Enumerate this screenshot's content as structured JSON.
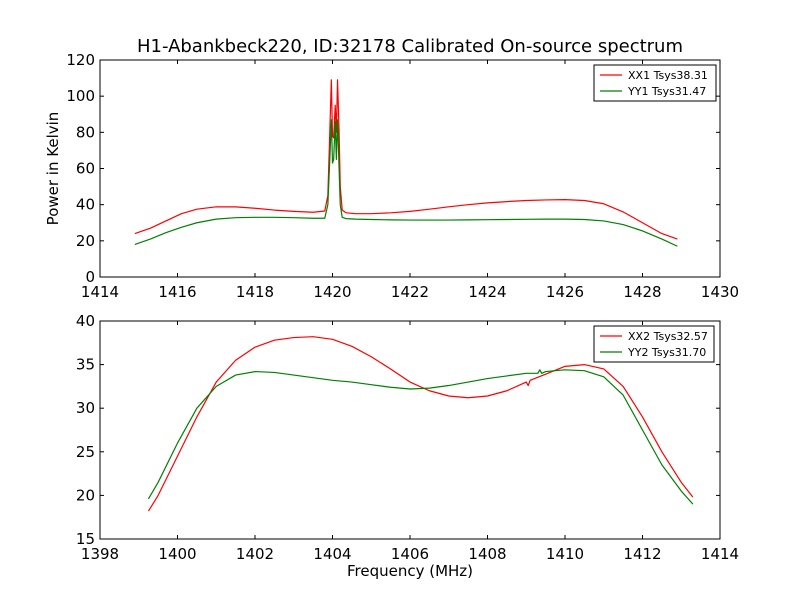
{
  "chart_data": [
    {
      "type": "line",
      "title": "H1-Abankbeck220, ID:32178 Calibrated On-source spectrum",
      "xlabel": "",
      "ylabel": "Power in Kelvin",
      "xlim": [
        1414,
        1430
      ],
      "ylim": [
        0,
        120
      ],
      "xticks": [
        1414,
        1416,
        1418,
        1420,
        1422,
        1424,
        1426,
        1428,
        1430
      ],
      "yticks": [
        0,
        20,
        40,
        60,
        80,
        100,
        120
      ],
      "grid": false,
      "legend_position": "top-right",
      "series": [
        {
          "name": "XX1 Tsys38.31",
          "color": "#ff0000",
          "x": [
            1414.9,
            1415.3,
            1415.7,
            1416.1,
            1416.5,
            1417.0,
            1417.5,
            1418.0,
            1418.5,
            1419.0,
            1419.5,
            1419.8,
            1419.88,
            1419.93,
            1419.97,
            1420.0,
            1420.03,
            1420.07,
            1420.1,
            1420.13,
            1420.17,
            1420.2,
            1420.25,
            1420.35,
            1420.6,
            1421.0,
            1421.5,
            1422.0,
            1422.5,
            1423.0,
            1423.5,
            1424.0,
            1424.5,
            1425.0,
            1425.5,
            1426.0,
            1426.5,
            1427.0,
            1427.5,
            1428.0,
            1428.5,
            1428.9
          ],
          "y": [
            24,
            27,
            31,
            35,
            37.5,
            38.8,
            38.8,
            38,
            37,
            36.3,
            35.8,
            36.5,
            45,
            80,
            109,
            78,
            77,
            95,
            80,
            109,
            80,
            50,
            37,
            35.5,
            35,
            35,
            35.5,
            36.3,
            37.5,
            38.8,
            40,
            41,
            41.7,
            42.3,
            42.6,
            42.8,
            42.3,
            40.5,
            36,
            30,
            24,
            21
          ]
        },
        {
          "name": "YY1 Tsys31.47",
          "color": "#008000",
          "x": [
            1414.9,
            1415.3,
            1415.7,
            1416.1,
            1416.5,
            1417.0,
            1417.5,
            1418.0,
            1418.5,
            1419.0,
            1419.5,
            1419.8,
            1419.88,
            1419.93,
            1419.97,
            1420.0,
            1420.03,
            1420.07,
            1420.1,
            1420.13,
            1420.17,
            1420.2,
            1420.25,
            1420.35,
            1420.6,
            1421.0,
            1421.5,
            1422.0,
            1422.5,
            1423.0,
            1423.5,
            1424.0,
            1424.5,
            1425.0,
            1425.5,
            1426.0,
            1426.5,
            1427.0,
            1427.5,
            1428.0,
            1428.5,
            1428.9
          ],
          "y": [
            18,
            21,
            24.5,
            27.5,
            30,
            32,
            32.8,
            33,
            33,
            32.8,
            32.5,
            32.5,
            40,
            65,
            87,
            63,
            65,
            86,
            65,
            87,
            60,
            40,
            33,
            32.3,
            32,
            31.8,
            31.6,
            31.5,
            31.5,
            31.5,
            31.6,
            31.7,
            31.8,
            31.9,
            32,
            32,
            31.8,
            31,
            29,
            25.5,
            21,
            17
          ]
        }
      ]
    },
    {
      "type": "line",
      "title": "",
      "xlabel": "Frequency (MHz)",
      "ylabel": "",
      "xlim": [
        1398,
        1414
      ],
      "ylim": [
        15,
        40
      ],
      "xticks": [
        1398,
        1400,
        1402,
        1404,
        1406,
        1408,
        1410,
        1412,
        1414
      ],
      "yticks": [
        15,
        20,
        25,
        30,
        35,
        40
      ],
      "grid": false,
      "legend_position": "top-right",
      "series": [
        {
          "name": "XX2 Tsys32.57",
          "color": "#ff0000",
          "x": [
            1399.25,
            1399.5,
            1400.0,
            1400.5,
            1401.0,
            1401.5,
            1402.0,
            1402.5,
            1403.0,
            1403.5,
            1404.0,
            1404.5,
            1405.0,
            1405.5,
            1406.0,
            1406.5,
            1407.0,
            1407.5,
            1408.0,
            1408.5,
            1409.0,
            1409.05,
            1409.1,
            1409.5,
            1410.0,
            1410.5,
            1411.0,
            1411.5,
            1412.0,
            1412.5,
            1413.0,
            1413.3
          ],
          "y": [
            18.2,
            20,
            24.5,
            29,
            33,
            35.5,
            37,
            37.8,
            38.1,
            38.2,
            37.9,
            37.1,
            35.9,
            34.5,
            33,
            32,
            31.4,
            31.2,
            31.4,
            32,
            33,
            32.6,
            33.2,
            33.9,
            34.8,
            35,
            34.5,
            32.5,
            29,
            25,
            21.5,
            19.8
          ]
        },
        {
          "name": "YY2 Tsys31.70",
          "color": "#008000",
          "x": [
            1399.25,
            1399.5,
            1400.0,
            1400.5,
            1401.0,
            1401.5,
            1402.0,
            1402.5,
            1403.0,
            1403.5,
            1404.0,
            1404.5,
            1405.0,
            1405.5,
            1406.0,
            1406.5,
            1407.0,
            1407.5,
            1408.0,
            1408.5,
            1409.0,
            1409.3,
            1409.35,
            1409.4,
            1409.5,
            1410.0,
            1410.5,
            1411.0,
            1411.5,
            1412.0,
            1412.5,
            1413.0,
            1413.3
          ],
          "y": [
            19.6,
            21.5,
            26,
            30,
            32.5,
            33.8,
            34.2,
            34.1,
            33.8,
            33.5,
            33.2,
            33,
            32.7,
            32.4,
            32.2,
            32.3,
            32.6,
            33,
            33.4,
            33.7,
            34,
            34,
            34.4,
            34,
            34.2,
            34.4,
            34.3,
            33.6,
            31.5,
            27.5,
            23.5,
            20.5,
            19
          ]
        }
      ]
    }
  ]
}
